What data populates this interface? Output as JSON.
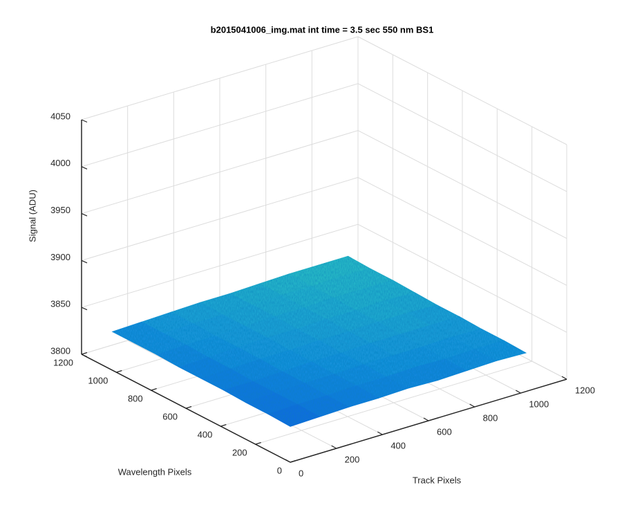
{
  "chart_data": {
    "type": "surface3d",
    "title": "b2015041006_img.mat int time = 3.5 sec  550 nm BS1",
    "xlabel": "Track Pixels",
    "ylabel": "Wavelength Pixels",
    "zlabel": "Signal (ADU)",
    "x": [
      0,
      128,
      256,
      384,
      512,
      640,
      768,
      896,
      1024
    ],
    "y": [
      0,
      128,
      256,
      384,
      512,
      640,
      768,
      896,
      1024
    ],
    "z": [
      [
        3838,
        3839,
        3840,
        3840,
        3841,
        3840,
        3841,
        3842,
        3841
      ],
      [
        3839,
        3840,
        3840,
        3841,
        3841,
        3842,
        3841,
        3842,
        3842
      ],
      [
        3839,
        3840,
        3841,
        3841,
        3842,
        3842,
        3842,
        3843,
        3842
      ],
      [
        3840,
        3840,
        3841,
        3842,
        3842,
        3843,
        3843,
        3843,
        3843
      ],
      [
        3840,
        3841,
        3842,
        3842,
        3843,
        3843,
        3844,
        3844,
        3843
      ],
      [
        3840,
        3841,
        3842,
        3843,
        3843,
        3844,
        3844,
        3845,
        3844
      ],
      [
        3841,
        3842,
        3842,
        3843,
        3844,
        3844,
        3845,
        3845,
        3845
      ],
      [
        3841,
        3842,
        3843,
        3843,
        3844,
        3845,
        3845,
        3846,
        3845
      ],
      [
        3841,
        3842,
        3843,
        3844,
        3844,
        3845,
        3846,
        3846,
        3846
      ]
    ],
    "xlim": [
      0,
      1200
    ],
    "ylim": [
      0,
      1200
    ],
    "zlim": [
      3800,
      4050
    ],
    "xticks": [
      0,
      200,
      400,
      600,
      800,
      1000,
      1200
    ],
    "yticks": [
      0,
      200,
      400,
      600,
      800,
      1000,
      1200
    ],
    "zticks": [
      3800,
      3850,
      3900,
      3950,
      4000,
      4050
    ],
    "grid": true,
    "colormap": [
      "#0b5ee0",
      "#1595dc",
      "#27bcc4"
    ]
  }
}
